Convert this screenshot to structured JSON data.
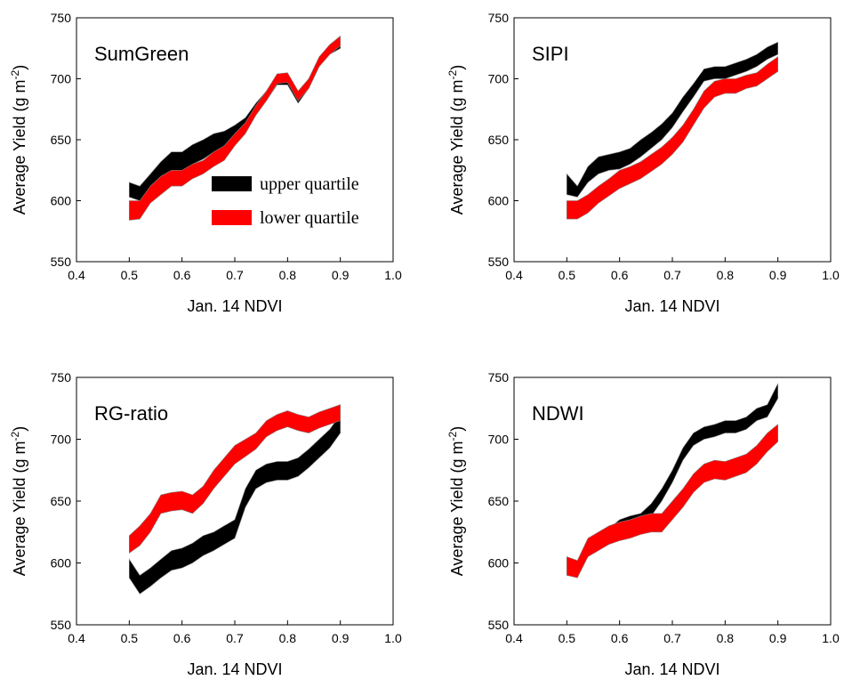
{
  "chart_data": [
    {
      "type": "area",
      "panel_label": "SumGreen",
      "xlabel": "Jan. 14 NDVI",
      "ylabel": "Average Yield (g m-2)",
      "xlim": [
        0.4,
        1.0
      ],
      "ylim": [
        550,
        750
      ],
      "xticks": [
        "0.4",
        "0.5",
        "0.6",
        "0.7",
        "0.8",
        "0.9",
        "1.0"
      ],
      "yticks": [
        "550",
        "600",
        "650",
        "700",
        "750"
      ],
      "legend": {
        "entries": [
          "upper quartile",
          "lower quartile"
        ],
        "placement": "center-right"
      },
      "x": [
        0.5,
        0.52,
        0.54,
        0.56,
        0.58,
        0.6,
        0.62,
        0.64,
        0.66,
        0.68,
        0.7,
        0.72,
        0.74,
        0.76,
        0.78,
        0.8,
        0.82,
        0.84,
        0.86,
        0.88,
        0.9
      ],
      "series": [
        {
          "name": "upper quartile",
          "color": "#000000",
          "upper": [
            615,
            612,
            622,
            632,
            640,
            640,
            646,
            650,
            655,
            657,
            662,
            668,
            680,
            690,
            703,
            703,
            688,
            700,
            717,
            727,
            732
          ],
          "lower": [
            603,
            600,
            610,
            620,
            625,
            622,
            630,
            634,
            640,
            642,
            650,
            660,
            672,
            682,
            695,
            695,
            680,
            692,
            710,
            720,
            725
          ]
        },
        {
          "name": "lower quartile",
          "color": "#ff0000",
          "upper": [
            600,
            600,
            612,
            620,
            625,
            625,
            630,
            633,
            640,
            645,
            655,
            664,
            678,
            690,
            704,
            705,
            690,
            700,
            718,
            728,
            735
          ],
          "lower": [
            584,
            585,
            598,
            605,
            612,
            612,
            618,
            622,
            628,
            633,
            645,
            655,
            670,
            682,
            696,
            697,
            682,
            692,
            710,
            720,
            727
          ]
        }
      ]
    },
    {
      "type": "area",
      "panel_label": "SIPI",
      "xlabel": "Jan. 14 NDVI",
      "ylabel": "Average Yield (g m-2)",
      "xlim": [
        0.4,
        1.0
      ],
      "ylim": [
        550,
        750
      ],
      "xticks": [
        "0.4",
        "0.5",
        "0.6",
        "0.7",
        "0.8",
        "0.9",
        "1.0"
      ],
      "yticks": [
        "550",
        "600",
        "650",
        "700",
        "750"
      ],
      "x": [
        0.5,
        0.52,
        0.54,
        0.56,
        0.58,
        0.6,
        0.62,
        0.64,
        0.66,
        0.68,
        0.7,
        0.72,
        0.74,
        0.76,
        0.78,
        0.8,
        0.82,
        0.84,
        0.86,
        0.88,
        0.9
      ],
      "series": [
        {
          "name": "upper quartile",
          "color": "#000000",
          "upper": [
            622,
            612,
            628,
            636,
            638,
            640,
            643,
            650,
            656,
            663,
            672,
            685,
            696,
            708,
            710,
            710,
            713,
            716,
            720,
            726,
            730
          ],
          "lower": [
            605,
            603,
            615,
            622,
            625,
            626,
            630,
            636,
            643,
            650,
            660,
            673,
            685,
            698,
            700,
            700,
            703,
            706,
            710,
            716,
            720
          ]
        },
        {
          "name": "lower quartile",
          "color": "#ff0000",
          "upper": [
            600,
            600,
            605,
            612,
            618,
            625,
            628,
            632,
            638,
            644,
            652,
            662,
            675,
            690,
            698,
            700,
            700,
            703,
            705,
            712,
            718
          ],
          "lower": [
            585,
            585,
            590,
            598,
            604,
            610,
            614,
            618,
            624,
            630,
            638,
            648,
            662,
            676,
            685,
            688,
            688,
            692,
            694,
            700,
            706
          ]
        }
      ]
    },
    {
      "type": "area",
      "panel_label": "RG-ratio",
      "xlabel": "Jan. 14 NDVI",
      "ylabel": "Average Yield (g m-2)",
      "xlim": [
        0.4,
        1.0
      ],
      "ylim": [
        550,
        750
      ],
      "xticks": [
        "0.4",
        "0.5",
        "0.6",
        "0.7",
        "0.8",
        "0.9",
        "1.0"
      ],
      "yticks": [
        "550",
        "600",
        "650",
        "700",
        "750"
      ],
      "x": [
        0.5,
        0.52,
        0.54,
        0.56,
        0.58,
        0.6,
        0.62,
        0.64,
        0.66,
        0.68,
        0.7,
        0.72,
        0.74,
        0.76,
        0.78,
        0.8,
        0.82,
        0.84,
        0.86,
        0.88,
        0.9
      ],
      "series": [
        {
          "name": "upper quartile",
          "color": "#000000",
          "upper": [
            603,
            590,
            596,
            603,
            610,
            612,
            616,
            622,
            625,
            630,
            635,
            660,
            675,
            680,
            682,
            682,
            685,
            692,
            700,
            708,
            720
          ],
          "lower": [
            588,
            575,
            581,
            588,
            594,
            596,
            600,
            606,
            610,
            615,
            620,
            645,
            660,
            665,
            667,
            667,
            670,
            677,
            685,
            693,
            705
          ]
        },
        {
          "name": "lower quartile",
          "color": "#ff0000",
          "upper": [
            622,
            630,
            640,
            655,
            657,
            658,
            655,
            662,
            675,
            685,
            695,
            700,
            705,
            715,
            720,
            723,
            720,
            718,
            722,
            725,
            728
          ],
          "lower": [
            608,
            614,
            625,
            640,
            642,
            643,
            640,
            648,
            660,
            670,
            680,
            686,
            692,
            702,
            707,
            710,
            707,
            705,
            709,
            712,
            715
          ]
        }
      ]
    },
    {
      "type": "area",
      "panel_label": "NDWI",
      "xlabel": "Jan. 14 NDVI",
      "ylabel": "Average Yield (g m-2)",
      "xlim": [
        0.4,
        1.0
      ],
      "ylim": [
        550,
        750
      ],
      "xticks": [
        "0.4",
        "0.5",
        "0.6",
        "0.7",
        "0.8",
        "0.9",
        "1.0"
      ],
      "yticks": [
        "550",
        "600",
        "650",
        "700",
        "750"
      ],
      "x": [
        0.5,
        0.52,
        0.54,
        0.56,
        0.58,
        0.6,
        0.62,
        0.64,
        0.66,
        0.68,
        0.7,
        0.72,
        0.74,
        0.76,
        0.78,
        0.8,
        0.82,
        0.84,
        0.86,
        0.88,
        0.9
      ],
      "series": [
        {
          "name": "upper quartile",
          "color": "#000000",
          "upper": [
            600,
            602,
            615,
            622,
            628,
            635,
            638,
            640,
            648,
            660,
            675,
            693,
            705,
            710,
            712,
            715,
            715,
            718,
            725,
            728,
            745
          ],
          "lower": [
            590,
            592,
            605,
            612,
            618,
            625,
            628,
            630,
            638,
            650,
            665,
            683,
            695,
            700,
            702,
            705,
            705,
            708,
            715,
            718,
            733
          ]
        },
        {
          "name": "lower quartile",
          "color": "#ff0000",
          "upper": [
            605,
            602,
            620,
            625,
            630,
            633,
            635,
            638,
            640,
            640,
            650,
            660,
            672,
            680,
            683,
            682,
            685,
            688,
            695,
            705,
            712
          ],
          "lower": [
            590,
            588,
            605,
            610,
            615,
            618,
            620,
            623,
            625,
            625,
            635,
            645,
            657,
            665,
            668,
            667,
            670,
            673,
            680,
            690,
            698
          ]
        }
      ]
    }
  ]
}
